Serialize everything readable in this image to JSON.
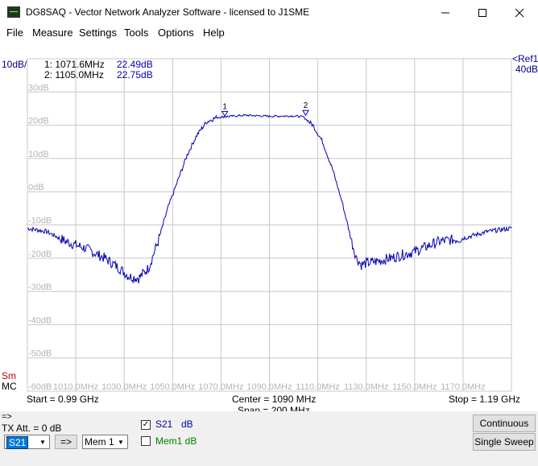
{
  "window": {
    "title": "DG8SAQ  -  Vector Network Analyzer Software  -  licensed to J1SME"
  },
  "menu": [
    "File",
    "Measure",
    "Settings",
    "Tools",
    "Options",
    "Help"
  ],
  "plot": {
    "scale_label": "10dB/",
    "ref_label": "<Ref1",
    "ref_value": "40dB",
    "markers": [
      {
        "id": "1",
        "label": "1: 1071.6MHz",
        "value": "22.49dB",
        "freq": 1071.6,
        "db": 22.49
      },
      {
        "id": "2",
        "label": "2: 1105.0MHz",
        "value": "22.75dB",
        "freq": 1105.0,
        "db": 22.75
      }
    ],
    "y_ticks": [
      "30dB",
      "20dB",
      "10dB",
      "0dB",
      "-10dB",
      "-20dB",
      "-30dB",
      "-40dB",
      "-50dB",
      "-60dB"
    ],
    "x_ticks": [
      "1010.0MHz",
      "1030.0MHz",
      "1050.0MHz",
      "1070.0MHz",
      "1090.0MHz",
      "1110.0MHz",
      "1130.0MHz",
      "1150.0MHz",
      "1170.0MHz"
    ],
    "sm_label": "Sm",
    "mc_label": "MC",
    "start": "Start = 0.99 GHz",
    "center": "Center = 1090 MHz",
    "span": "Span = 200 MHz",
    "stop": "Stop = 1.19 GHz",
    "trace_color": "#0000b0",
    "grid_color": "#c8c8c8"
  },
  "controls": {
    "arrow_label": "=>",
    "tx_att": "TX Att. = 0 dB",
    "sparam_select": "S21",
    "arrow_button": "=>",
    "mem_select": "Mem 1",
    "s21_label": "S21",
    "s21_unit": "dB",
    "s21_checked": true,
    "mem1_label": "Mem1 dB",
    "mem1_checked": false,
    "continuous_button": "Continuous",
    "single_sweep_button": "Single Sweep"
  },
  "chart_data": {
    "type": "line",
    "xlabel": "",
    "ylabel": "",
    "xlim": [
      990,
      1190
    ],
    "ylim": [
      -60,
      40
    ],
    "series": [
      {
        "x": [
          990,
          998,
          1006,
          1014,
          1022,
          1028,
          1032,
          1036,
          1040,
          1044,
          1048,
          1052,
          1056,
          1060,
          1064,
          1068,
          1072,
          1080,
          1090,
          1100,
          1104,
          1108,
          1112,
          1116,
          1120,
          1124,
          1126,
          1128,
          1130,
          1134,
          1140,
          1150,
          1160,
          1170,
          1180,
          1190
        ],
        "y": [
          -11,
          -12,
          -15,
          -17,
          -20,
          -23,
          -25.5,
          -26,
          -23,
          -15,
          -5,
          3,
          11,
          17,
          21,
          22.3,
          22.6,
          23,
          22.7,
          22.8,
          22.5,
          20,
          15,
          7,
          -3,
          -15,
          -20,
          -22,
          -21.5,
          -21,
          -20,
          -18,
          -15,
          -14,
          -12,
          -11
        ]
      }
    ]
  }
}
